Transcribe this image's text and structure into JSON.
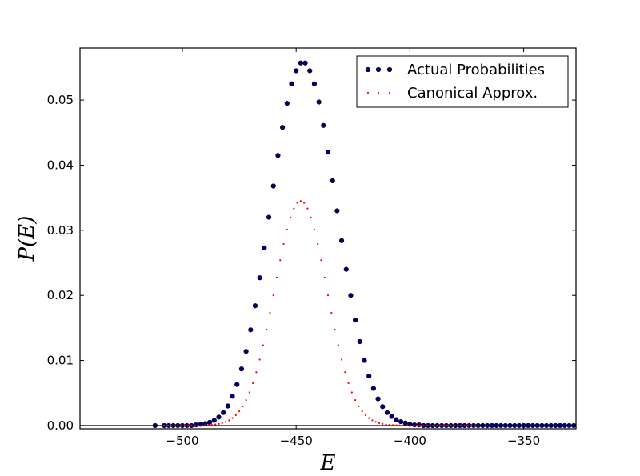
{
  "chart_data": {
    "type": "scatter",
    "title": "",
    "xlabel": "E",
    "ylabel": "P(E)",
    "xlim": [
      -545,
      -327
    ],
    "ylim": [
      -0.0005,
      0.058
    ],
    "xticks": [
      -500,
      -450,
      -400,
      -350
    ],
    "xtick_labels": [
      "−500",
      "−450",
      "−400",
      "−350"
    ],
    "yticks": [
      0.0,
      0.01,
      0.02,
      0.03,
      0.04,
      0.05
    ],
    "ytick_labels": [
      "0.00",
      "0.01",
      "0.02",
      "0.03",
      "0.04",
      "0.05"
    ],
    "grid": false,
    "legend_position": "upper-right",
    "series": [
      {
        "name": "Actual Probabilities",
        "marker": "circle",
        "color": "#00007f",
        "edge": "#000000",
        "x": [
          -512,
          -508,
          -506,
          -504,
          -502,
          -500,
          -498,
          -496,
          -494,
          -492,
          -490,
          -488,
          -486,
          -484,
          -482,
          -480,
          -478,
          -476,
          -474,
          -472,
          -470,
          -468,
          -466,
          -464,
          -462,
          -460,
          -458,
          -456,
          -454,
          -452,
          -450,
          -448,
          -446,
          -444,
          -442,
          -440,
          -438,
          -436,
          -434,
          -432,
          -430,
          -428,
          -426,
          -424,
          -422,
          -420,
          -418,
          -416,
          -414,
          -412,
          -410,
          -408,
          -406,
          -404,
          -402,
          -400,
          -398,
          -396,
          -394,
          -392,
          -390,
          -388,
          -386,
          -384,
          -382,
          -380,
          -378,
          -376,
          -374,
          -372,
          -370,
          -368,
          -366,
          -364,
          -362,
          -360,
          -358,
          -356,
          -354,
          -352,
          -350,
          -348,
          -346,
          -344,
          -342,
          -340,
          -338,
          -336,
          -334,
          -332,
          -330,
          -328
        ],
        "y": [
          0.0,
          0.0,
          0.0,
          0.0,
          0.0,
          0.0,
          0.0,
          0.0,
          0.0001,
          0.0002,
          0.0003,
          0.0005,
          0.0008,
          0.0013,
          0.002,
          0.003,
          0.0045,
          0.0063,
          0.0087,
          0.0114,
          0.0147,
          0.0184,
          0.0227,
          0.0273,
          0.032,
          0.0368,
          0.0415,
          0.0458,
          0.0495,
          0.0525,
          0.0545,
          0.0557,
          0.0557,
          0.0545,
          0.0525,
          0.0497,
          0.0461,
          0.042,
          0.0376,
          0.033,
          0.0284,
          0.024,
          0.02,
          0.0162,
          0.0129,
          0.01,
          0.0076,
          0.0057,
          0.0041,
          0.0029,
          0.002,
          0.0014,
          0.0009,
          0.0006,
          0.0004,
          0.0002,
          0.0001,
          0.0001,
          0.0,
          0.0,
          0.0,
          0.0,
          0.0,
          0.0,
          0.0,
          0.0,
          0.0,
          0.0,
          0.0,
          0.0,
          0.0,
          0.0,
          0.0,
          0.0,
          0.0,
          0.0,
          0.0,
          0.0,
          0.0,
          0.0,
          0.0,
          0.0,
          0.0,
          0.0,
          0.0,
          0.0,
          0.0,
          0.0,
          0.0,
          0.0,
          0.0,
          0.0
        ]
      },
      {
        "name": "Canonical Approx.",
        "marker": "dot",
        "color": "#ff0000",
        "gaussian": {
          "mean": -448,
          "sigma": 11.5,
          "peak": 0.0345
        },
        "x_range": [
          -508,
          -370
        ],
        "x_step": 1.5
      }
    ]
  }
}
